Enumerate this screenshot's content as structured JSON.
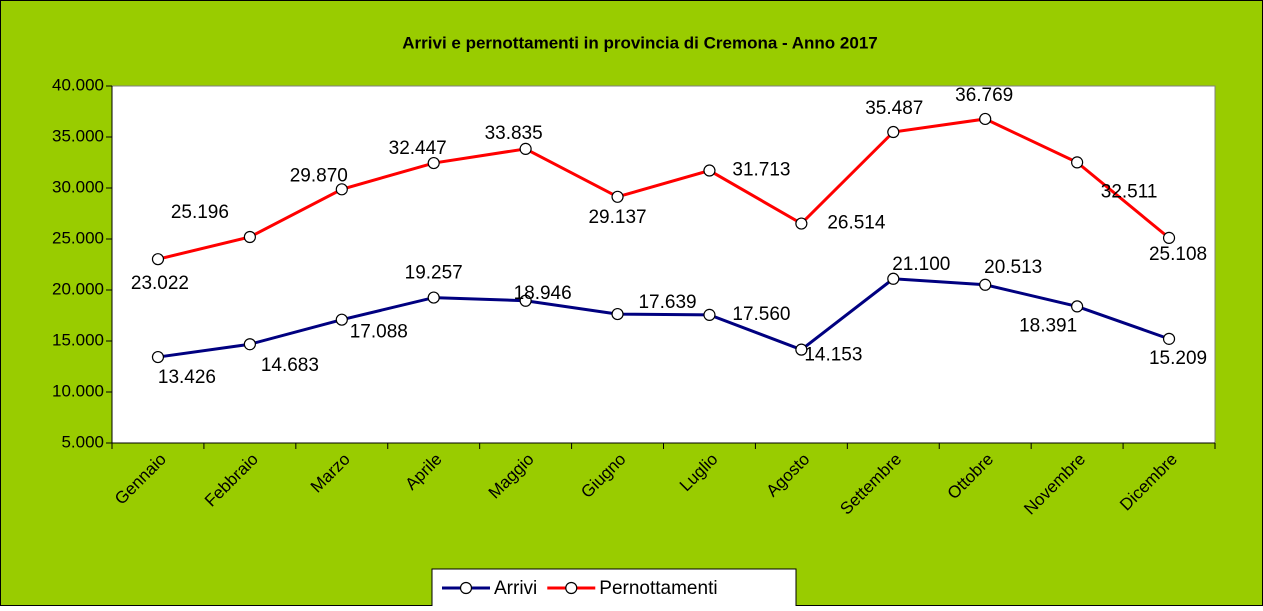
{
  "chart_data": {
    "type": "line",
    "title": "Arrivi e pernottamenti in provincia di Cremona - Anno 2017",
    "categories": [
      "Gennaio",
      "Febbraio",
      "Marzo",
      "Aprile",
      "Maggio",
      "Giugno",
      "Luglio",
      "Agosto",
      "Settembre",
      "Ottobre",
      "Novembre",
      "Dicembre"
    ],
    "series": [
      {
        "name": "Arrivi",
        "color": "#000080",
        "values": [
          13426,
          14683,
          17088,
          19257,
          18946,
          17639,
          17560,
          14153,
          21100,
          20513,
          18391,
          15209
        ],
        "value_labels": [
          "13.426",
          "14.683",
          "17.088",
          "19.257",
          "18.946",
          "17.639",
          "17.560",
          "14.153",
          "21.100",
          "20.513",
          "18.391",
          "15.209"
        ]
      },
      {
        "name": "Pernottamenti",
        "color": "#ff0000",
        "values": [
          23022,
          25196,
          29870,
          32447,
          33835,
          29137,
          31713,
          26514,
          35487,
          36769,
          32511,
          25108
        ],
        "value_labels": [
          "23.022",
          "25.196",
          "29.870",
          "32.447",
          "33.835",
          "29.137",
          "31.713",
          "26.514",
          "35.487",
          "36.769",
          "32.511",
          "25.108"
        ]
      }
    ],
    "ylim": [
      5000,
      40000
    ],
    "yticks": [
      {
        "value": 5000,
        "label": "5.000"
      },
      {
        "value": 10000,
        "label": "10.000"
      },
      {
        "value": 15000,
        "label": "15.000"
      },
      {
        "value": 20000,
        "label": "20.000"
      },
      {
        "value": 25000,
        "label": "25.000"
      },
      {
        "value": 30000,
        "label": "30.000"
      },
      {
        "value": 35000,
        "label": "35.000"
      },
      {
        "value": 40000,
        "label": "40.000"
      }
    ],
    "grid": false,
    "legend": "bottom"
  }
}
